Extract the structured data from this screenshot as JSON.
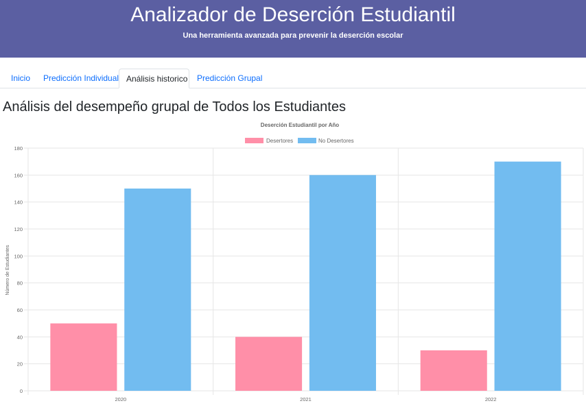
{
  "header": {
    "title": "Analizador de Deserción Estudiantil",
    "subtitle": "Una herramienta avanzada para prevenir la deserción escolar"
  },
  "tabs": [
    {
      "label": "Inicio",
      "active": false
    },
    {
      "label": "Predicción Individual",
      "active": false
    },
    {
      "label": "Análisis historico",
      "active": true
    },
    {
      "label": "Predicción Grupal",
      "active": false
    }
  ],
  "main": {
    "section_title": "Análisis del desempeño grupal de Todos los Estudiantes"
  },
  "colors": {
    "header_bg": "#5b5fa2",
    "series_desertores": "#ff8fa8",
    "series_no_desertores": "#72bcf0"
  },
  "chart_data": {
    "type": "bar",
    "title": "Deserción Estudiantil por Año",
    "categories": [
      "2020",
      "2021",
      "2022"
    ],
    "series": [
      {
        "name": "Desertores",
        "values": [
          50,
          40,
          30
        ]
      },
      {
        "name": "No Desertores",
        "values": [
          150,
          160,
          170
        ]
      }
    ],
    "ylabel": "Número de Estudiantes",
    "xlabel": "",
    "ylim": [
      0,
      180
    ],
    "yticks": [
      0,
      20,
      40,
      60,
      80,
      100,
      120,
      140,
      160,
      180
    ],
    "legend_position": "top-center",
    "grid": true
  }
}
